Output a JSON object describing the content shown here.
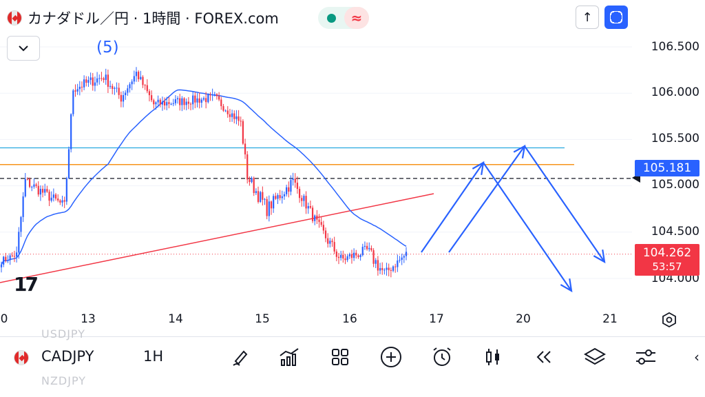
{
  "header": {
    "title": "カナダドル／円 · 1時間 · FOREX.com",
    "wave_icon": "≈",
    "up_icon": "↑"
  },
  "chart": {
    "wave_label": "(5)",
    "tv_logo": "17",
    "price_axis": [
      "106.500",
      "106.000",
      "105.500",
      "105.000",
      "104.500",
      "104.000"
    ],
    "date_axis": [
      "0",
      "13",
      "14",
      "15",
      "16",
      "17",
      "20",
      "21"
    ],
    "current_price": "104.262",
    "countdown": "53:57",
    "ma_price": "105.181",
    "colors": {
      "up": "#2962ff",
      "down": "#f23645",
      "ma": "#2962ff",
      "cyan_line": "#26a9e0",
      "orange_line": "#f7931a",
      "trend_line": "#f23645",
      "arrows": "#2962ff"
    }
  },
  "chart_data": {
    "type": "candlestick",
    "symbol": "CADJPY",
    "timeframe": "1H",
    "x_labels": [
      "0",
      "13",
      "14",
      "15",
      "16",
      "17",
      "20",
      "21"
    ],
    "y_ticks": [
      104.0,
      104.5,
      105.0,
      105.5,
      106.0,
      106.5
    ],
    "ylim": [
      103.86,
      106.72
    ],
    "last_price": 104.262,
    "ma_value": 105.181,
    "horizontal_lines": [
      105.41,
      105.23,
      105.08,
      104.262
    ],
    "segments": [
      {
        "start": 104.18,
        "end": 104.26,
        "count": 8,
        "noise": 0.08
      },
      {
        "start": 104.26,
        "end": 105.05,
        "count": 4,
        "noise": 0.18
      },
      {
        "start": 105.05,
        "end": 104.78,
        "count": 18,
        "noise": 0.12
      },
      {
        "start": 104.78,
        "end": 106.05,
        "count": 4,
        "noise": 0.12
      },
      {
        "start": 106.05,
        "end": 106.18,
        "count": 14,
        "noise": 0.12
      },
      {
        "start": 106.18,
        "end": 105.95,
        "count": 8,
        "noise": 0.12
      },
      {
        "start": 105.95,
        "end": 106.22,
        "count": 7,
        "noise": 0.1
      },
      {
        "start": 106.22,
        "end": 105.88,
        "count": 8,
        "noise": 0.1
      },
      {
        "start": 105.88,
        "end": 105.95,
        "count": 28,
        "noise": 0.1
      },
      {
        "start": 105.95,
        "end": 105.68,
        "count": 12,
        "noise": 0.1
      },
      {
        "start": 105.68,
        "end": 105.1,
        "count": 3,
        "noise": 0.12
      },
      {
        "start": 105.1,
        "end": 104.75,
        "count": 9,
        "noise": 0.16
      },
      {
        "start": 104.75,
        "end": 105.05,
        "count": 12,
        "noise": 0.14
      },
      {
        "start": 105.05,
        "end": 104.55,
        "count": 12,
        "noise": 0.12
      },
      {
        "start": 104.55,
        "end": 104.2,
        "count": 10,
        "noise": 0.14
      },
      {
        "start": 104.2,
        "end": 104.3,
        "count": 12,
        "noise": 0.12
      },
      {
        "start": 104.3,
        "end": 104.05,
        "count": 8,
        "noise": 0.16
      },
      {
        "start": 104.05,
        "end": 104.262,
        "count": 10,
        "noise": 0.1
      }
    ]
  },
  "bottom_bar": {
    "ghost_top": "USDJPY",
    "ghost_bottom": "NZDJPY",
    "symbol": "CADJPY",
    "timeframe": "1H",
    "more": "‹",
    "tools": [
      "brush-icon",
      "indicators-icon",
      "grid-icon",
      "add-icon",
      "alarm-icon",
      "candles-icon",
      "replay-icon",
      "layers-icon",
      "settings-sliders-icon"
    ]
  }
}
